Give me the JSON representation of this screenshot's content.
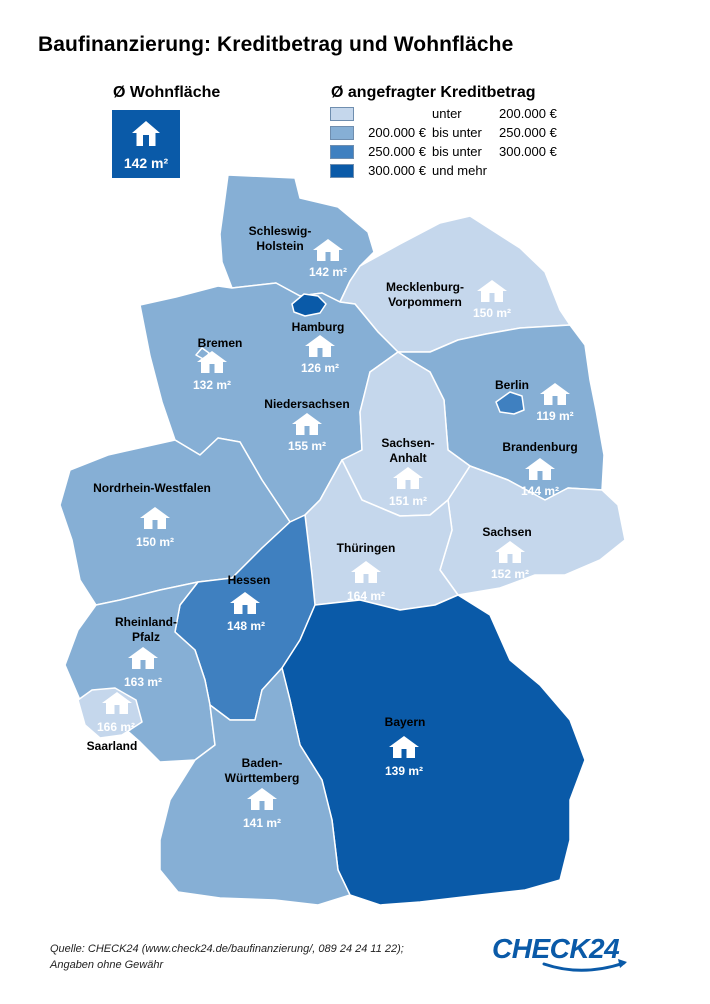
{
  "title": "Baufinanzierung: Kreditbetrag und Wohnfläche",
  "average": {
    "heading": "Ø Wohnfläche",
    "value": "142 m²",
    "icon": "house-icon"
  },
  "legend": {
    "heading": "Ø angefragter Kreditbetrag",
    "items": [
      {
        "a": "",
        "b": "unter",
        "c": "200.000 €",
        "color": "#c5d7ec"
      },
      {
        "a": "200.000 €",
        "b": "bis unter",
        "c": "250.000 €",
        "color": "#86afd5"
      },
      {
        "a": "250.000 €",
        "b": "bis unter",
        "c": "300.000 €",
        "color": "#3f80c0"
      },
      {
        "a": "300.000 €",
        "b": "und mehr",
        "c": "",
        "color": "#0a5aa8"
      }
    ]
  },
  "regions": [
    {
      "key": "sh",
      "name": "Schleswig-Holstein",
      "lines": [
        "Schleswig-",
        "Holstein"
      ],
      "value": "142 m²",
      "tier": 1
    },
    {
      "key": "hh",
      "name": "Hamburg",
      "lines": [
        "Hamburg"
      ],
      "value": "126 m²",
      "tier": 3
    },
    {
      "key": "mv",
      "name": "Mecklenburg-Vorpommern",
      "lines": [
        "Mecklenburg-",
        "Vorpommern"
      ],
      "value": "150 m²",
      "tier": 0
    },
    {
      "key": "hb",
      "name": "Bremen",
      "lines": [
        "Bremen"
      ],
      "value": "132 m²",
      "tier": 1
    },
    {
      "key": "ni",
      "name": "Niedersachsen",
      "lines": [
        "Niedersachsen"
      ],
      "value": "155 m²",
      "tier": 1
    },
    {
      "key": "be",
      "name": "Berlin",
      "lines": [
        "Berlin"
      ],
      "value": "119 m²",
      "tier": 2
    },
    {
      "key": "bb",
      "name": "Brandenburg",
      "lines": [
        "Brandenburg"
      ],
      "value": "144 m²",
      "tier": 1
    },
    {
      "key": "st",
      "name": "Sachsen-Anhalt",
      "lines": [
        "Sachsen-",
        "Anhalt"
      ],
      "value": "151 m²",
      "tier": 0
    },
    {
      "key": "nw",
      "name": "Nordrhein-Westfalen",
      "lines": [
        "Nordrhein-Westfalen"
      ],
      "value": "150 m²",
      "tier": 1
    },
    {
      "key": "sn",
      "name": "Sachsen",
      "lines": [
        "Sachsen"
      ],
      "value": "152 m²",
      "tier": 0
    },
    {
      "key": "th",
      "name": "Thüringen",
      "lines": [
        "Thüringen"
      ],
      "value": "164 m²",
      "tier": 0
    },
    {
      "key": "he",
      "name": "Hessen",
      "lines": [
        "Hessen"
      ],
      "value": "148 m²",
      "tier": 2
    },
    {
      "key": "rp",
      "name": "Rheinland-Pfalz",
      "lines": [
        "Rheinland-",
        "Pfalz"
      ],
      "value": "163 m²",
      "tier": 1
    },
    {
      "key": "sl",
      "name": "Saarland",
      "lines": [
        "Saarland"
      ],
      "value": "166 m²",
      "tier": 0
    },
    {
      "key": "by",
      "name": "Bayern",
      "lines": [
        "Bayern"
      ],
      "value": "139 m²",
      "tier": 3
    },
    {
      "key": "bw",
      "name": "Baden-Württemberg",
      "lines": [
        "Baden-",
        "Württemberg"
      ],
      "value": "141 m²",
      "tier": 1
    }
  ],
  "source": {
    "line1": "Quelle: CHECK24 (www.check24.de/baufinanzierung/, 089 24 24 11 22);",
    "line2": "Angaben ohne Gewähr"
  },
  "logo_text": "CHECK24"
}
